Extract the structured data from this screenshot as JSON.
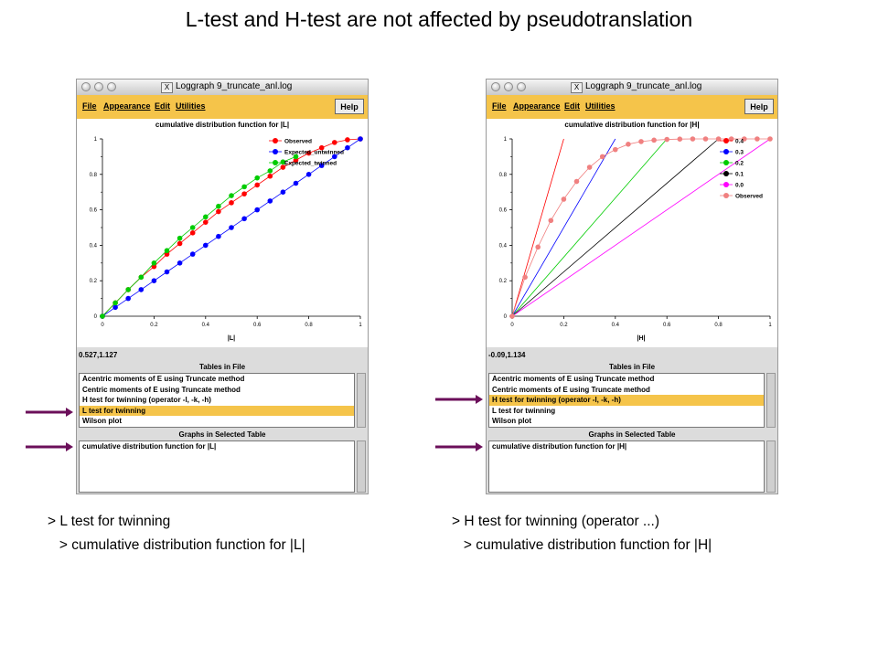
{
  "slide": {
    "title": "L-test and H-test are not affected by pseudotranslation",
    "caption_left_1": "> L test for twinning",
    "caption_left_2": "   > cumulative distribution function for |L|",
    "caption_right_1": "> H test for twinning (operator ...)",
    "caption_right_2": "   > cumulative distribution function for |H|"
  },
  "colors": {
    "menubar": "#f5c44a",
    "selection": "#f5c44a",
    "arrow": "#6b0f5a",
    "window_bg": "#dcdcdc"
  },
  "windows": [
    {
      "title": "Loggraph 9_truncate_anl.log",
      "menu": [
        "File",
        "Appearance",
        "Edit",
        "Utilities"
      ],
      "help": "Help",
      "graph_title": "cumulative distribution function for |L|",
      "coords": "0.527,1.127",
      "tables_header": "Tables in File",
      "tables": [
        "Acentric moments of E using Truncate method",
        "Centric moments of E using Truncate method",
        "H test for twinning (operator -l, -k, -h)",
        "L test for twinning",
        "Wilson plot"
      ],
      "selected_table": 3,
      "graphs_header": "Graphs in Selected Table",
      "graphs": [
        "cumulative distribution function for |L|"
      ],
      "chart_data": {
        "type": "line",
        "xlabel": "|L|",
        "xlim": [
          0,
          1
        ],
        "ylim": [
          0,
          1
        ],
        "x_ticks": [
          "0",
          "0.2",
          "0.4",
          "0.6",
          "0.8",
          "1"
        ],
        "y_ticks": [
          "0",
          "0.2",
          "0.4",
          "0.6",
          "0.8",
          "1"
        ],
        "legend_position": "top-right",
        "series": [
          {
            "name": "Observed",
            "color": "#ff0000",
            "x": [
              0,
              0.05,
              0.1,
              0.15,
              0.2,
              0.25,
              0.3,
              0.35,
              0.4,
              0.45,
              0.5,
              0.55,
              0.6,
              0.65,
              0.7,
              0.75,
              0.8,
              0.85,
              0.9,
              0.95,
              1
            ],
            "y": [
              0,
              0.075,
              0.15,
              0.22,
              0.28,
              0.35,
              0.41,
              0.47,
              0.53,
              0.59,
              0.64,
              0.69,
              0.74,
              0.79,
              0.84,
              0.88,
              0.92,
              0.95,
              0.98,
              0.995,
              1
            ]
          },
          {
            "name": "Expected_untwinned",
            "color": "#0000ff",
            "x": [
              0,
              0.05,
              0.1,
              0.15,
              0.2,
              0.25,
              0.3,
              0.35,
              0.4,
              0.45,
              0.5,
              0.55,
              0.6,
              0.65,
              0.7,
              0.75,
              0.8,
              0.85,
              0.9,
              0.95,
              1
            ],
            "y": [
              0,
              0.05,
              0.1,
              0.15,
              0.2,
              0.25,
              0.3,
              0.35,
              0.4,
              0.45,
              0.5,
              0.55,
              0.6,
              0.65,
              0.7,
              0.75,
              0.8,
              0.85,
              0.9,
              0.95,
              1
            ]
          },
          {
            "name": "Expected_twinned",
            "color": "#00cc00",
            "x": [
              0,
              0.05,
              0.1,
              0.15,
              0.2,
              0.25,
              0.3,
              0.35,
              0.4,
              0.45,
              0.5,
              0.55,
              0.6,
              0.65,
              0.7,
              0.75
            ],
            "y": [
              0,
              0.075,
              0.15,
              0.22,
              0.3,
              0.37,
              0.44,
              0.5,
              0.56,
              0.62,
              0.68,
              0.73,
              0.78,
              0.82,
              0.87,
              0.9
            ]
          }
        ]
      }
    },
    {
      "title": "Loggraph 9_truncate_anl.log",
      "menu": [
        "File",
        "Appearance",
        "Edit",
        "Utilities"
      ],
      "help": "Help",
      "graph_title": "cumulative distribution function for |H|",
      "coords": "-0.09,1.134",
      "tables_header": "Tables in File",
      "tables": [
        "Acentric moments of E using Truncate method",
        "Centric moments of E using Truncate method",
        "H test for twinning (operator -l, -k, -h)",
        "L test for twinning",
        "Wilson plot"
      ],
      "selected_table": 2,
      "graphs_header": "Graphs in Selected Table",
      "graphs": [
        "cumulative distribution function for |H|"
      ],
      "chart_data": {
        "type": "line",
        "xlabel": "|H|",
        "xlim": [
          0,
          1
        ],
        "ylim": [
          0,
          1
        ],
        "x_ticks": [
          "0",
          "0.2",
          "0.4",
          "0.6",
          "0.8",
          "1"
        ],
        "y_ticks": [
          "0",
          "0.2",
          "0.4",
          "0.6",
          "0.8",
          "1"
        ],
        "legend_position": "top-right",
        "series": [
          {
            "name": "0.4",
            "color": "#ff0000",
            "line_only": true,
            "x": [
              0,
              0.2
            ],
            "y": [
              0,
              1
            ]
          },
          {
            "name": "0.3",
            "color": "#0000ff",
            "line_only": true,
            "x": [
              0,
              0.4
            ],
            "y": [
              0,
              1
            ]
          },
          {
            "name": "0.2",
            "color": "#00cc00",
            "line_only": true,
            "x": [
              0,
              0.6
            ],
            "y": [
              0,
              1
            ]
          },
          {
            "name": "0.1",
            "color": "#000000",
            "line_only": true,
            "x": [
              0,
              0.8
            ],
            "y": [
              0,
              1
            ]
          },
          {
            "name": "0.0",
            "color": "#ff00ff",
            "line_only": true,
            "x": [
              0,
              1
            ],
            "y": [
              0,
              1
            ]
          },
          {
            "name": "Observed",
            "color": "#f08080",
            "x": [
              0,
              0.05,
              0.1,
              0.15,
              0.2,
              0.25,
              0.3,
              0.35,
              0.4,
              0.45,
              0.5,
              0.55,
              0.6,
              0.65,
              0.7,
              0.75,
              0.8,
              0.85,
              0.9,
              0.95,
              1
            ],
            "y": [
              0,
              0.22,
              0.39,
              0.54,
              0.66,
              0.76,
              0.84,
              0.9,
              0.94,
              0.97,
              0.985,
              0.993,
              0.997,
              0.999,
              1,
              1,
              1,
              1,
              1,
              1,
              1
            ]
          }
        ]
      }
    }
  ]
}
